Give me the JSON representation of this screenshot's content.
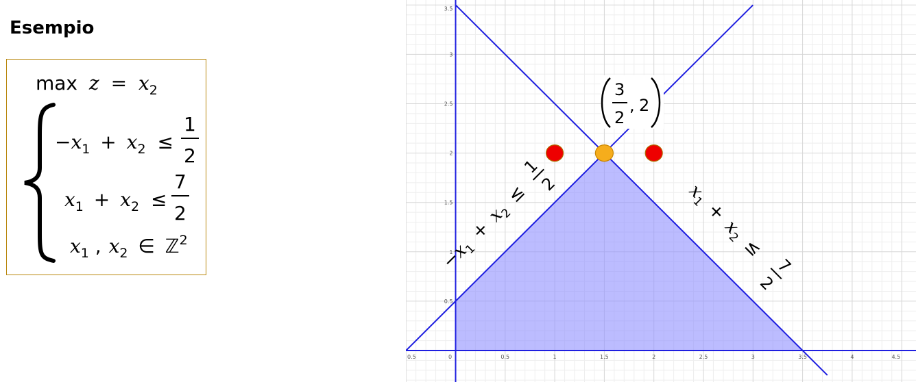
{
  "title": "Esempio",
  "problem": {
    "objective": {
      "max": "max",
      "z": "z",
      "eq": "=",
      "var": "x",
      "sub": "2"
    },
    "c1": {
      "minus": "−",
      "x1": "x",
      "s1": "1",
      "plus": "+",
      "x2": "x",
      "s2": "2",
      "le": "≤",
      "num": "1",
      "den": "2"
    },
    "c2": {
      "x1": "x",
      "s1": "1",
      "plus": "+",
      "x2": "x",
      "s2": "2",
      "le": "≤",
      "num": "7",
      "den": "2"
    },
    "c3": {
      "x1": "x",
      "s1": "1",
      "comma": ",",
      "x2": "x",
      "s2": "2",
      "in": "∈",
      "set": "ℤ",
      "exp": "2"
    }
  },
  "graph": {
    "x_ticks": [
      "0.5",
      "0",
      "0.5",
      "1",
      "1.5",
      "2",
      "2.5",
      "3",
      "3.5",
      "4",
      "4.5"
    ],
    "y_ticks": [
      "3.5",
      "3",
      "2.5",
      "2",
      "1.5",
      "1",
      "0.5"
    ],
    "point_label": {
      "num": "3",
      "den": "2",
      "y": "2"
    },
    "line1_label": {
      "minus": "−",
      "x1": "x",
      "s1": "1",
      "plus": "+",
      "x2": "x",
      "s2": "2",
      "le": "≤",
      "num": "1",
      "den": "2"
    },
    "line2_label": {
      "x1": "x",
      "s1": "1",
      "plus": "+",
      "x2": "x",
      "s2": "2",
      "le": "≤",
      "num": "7",
      "den": "2"
    },
    "colors": {
      "line": "#1f1fe0",
      "region": "#8f8fff",
      "optimum": "#f6ad1c",
      "infeasible": "#ee0000",
      "grid": "#e2e2e2"
    }
  },
  "chart_data": {
    "type": "scatter",
    "xlim": [
      -0.5,
      4.5
    ],
    "ylim": [
      -0.1,
      3.5
    ],
    "lines": [
      {
        "equation": "-x1 + x2 = 1/2",
        "points": [
          [
            -0.5,
            0
          ],
          [
            3,
            3.5
          ]
        ]
      },
      {
        "equation": "x1 + x2 = 7/2",
        "points": [
          [
            0,
            3.5
          ],
          [
            3.5,
            0
          ]
        ]
      }
    ],
    "feasible_region": [
      [
        0,
        0
      ],
      [
        0,
        0.5
      ],
      [
        1.5,
        2
      ],
      [
        3.5,
        0
      ]
    ],
    "points": [
      {
        "x": 1.5,
        "y": 2,
        "role": "optimum"
      },
      {
        "x": 1,
        "y": 2,
        "role": "infeasible"
      },
      {
        "x": 2,
        "y": 2,
        "role": "infeasible"
      }
    ],
    "grid": true
  }
}
